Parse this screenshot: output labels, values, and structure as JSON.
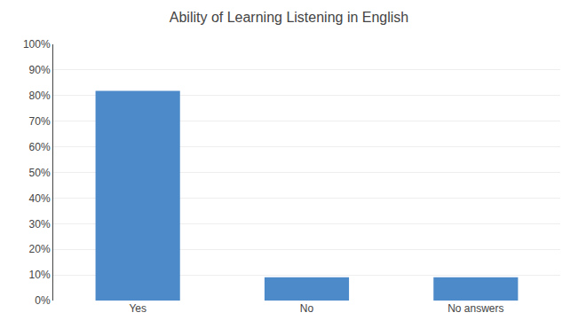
{
  "chart_data": {
    "type": "bar",
    "title": "Ability of Learning Listening in English",
    "categories": [
      "Yes",
      "No",
      "No answers"
    ],
    "values": [
      81.8,
      9.1,
      9.1
    ],
    "color": "#4d8ac9",
    "ylim": [
      0,
      100
    ],
    "yticks": [
      {
        "value": 0,
        "label": "0%"
      },
      {
        "value": 10,
        "label": "10%"
      },
      {
        "value": 20,
        "label": "20%"
      },
      {
        "value": 30,
        "label": "30%"
      },
      {
        "value": 40,
        "label": "40%"
      },
      {
        "value": 50,
        "label": "50%"
      },
      {
        "value": 60,
        "label": "60%"
      },
      {
        "value": 70,
        "label": "70%"
      },
      {
        "value": 80,
        "label": "80%"
      },
      {
        "value": 90,
        "label": "90%"
      },
      {
        "value": 100,
        "label": "100%"
      }
    ],
    "grid": true
  }
}
